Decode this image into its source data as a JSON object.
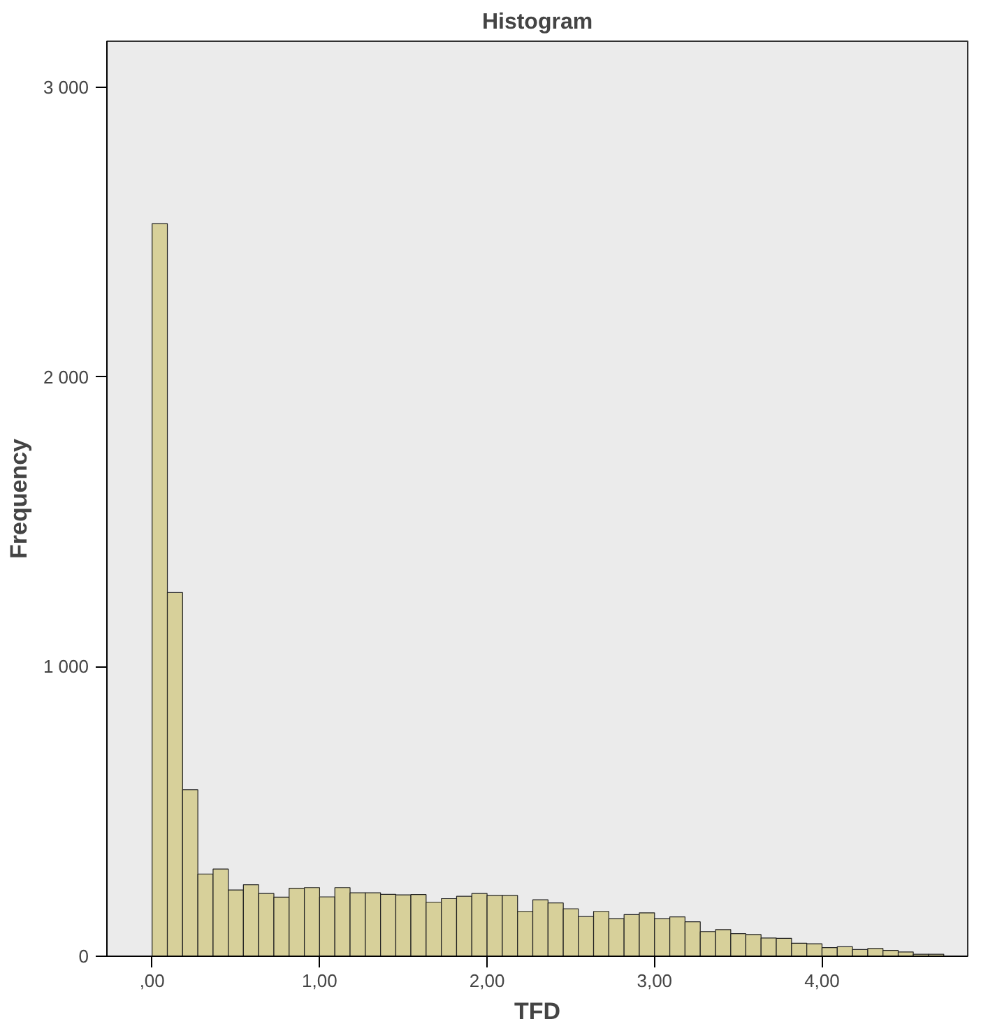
{
  "chart_data": {
    "type": "histogram",
    "title": "Histogram",
    "xlabel": "TFD",
    "ylabel": "Frequency",
    "bins": [
      0,
      0.091,
      0.182,
      0.273,
      0.364,
      0.455,
      0.545,
      0.636,
      0.727,
      0.818,
      0.909,
      1,
      1.091,
      1.182,
      1.273,
      1.364,
      1.455,
      1.545,
      1.636,
      1.727,
      1.818,
      1.909,
      2,
      2.091,
      2.182,
      2.273,
      2.364,
      2.455,
      2.545,
      2.636,
      2.727,
      2.818,
      2.909,
      3,
      3.091,
      3.182,
      3.273,
      3.364,
      3.455,
      3.545,
      3.636,
      3.727,
      3.818,
      3.909,
      4,
      4.091,
      4.182,
      4.273,
      4.364,
      4.455,
      4.545,
      4.636,
      4.727
    ],
    "values": [
      2530,
      1256,
      575,
      284,
      301,
      229,
      247,
      217,
      204,
      235,
      237,
      205,
      237,
      219,
      219,
      214,
      212,
      213,
      187,
      199,
      207,
      217,
      210,
      210,
      155,
      195,
      184,
      164,
      137,
      155,
      130,
      144,
      150,
      130,
      136,
      119,
      85,
      92,
      78,
      75,
      63,
      62,
      45,
      43,
      30,
      33,
      23,
      27,
      20,
      15,
      7,
      7
    ],
    "color": "#d7d09a",
    "xlim": [
      -0.27,
      4.87
    ],
    "ylim": [
      0,
      3160
    ],
    "xticks": [
      {
        "value": 0,
        "label": ",00"
      },
      {
        "value": 1,
        "label": "1,00"
      },
      {
        "value": 2,
        "label": "2,00"
      },
      {
        "value": 3,
        "label": "3,00"
      },
      {
        "value": 4,
        "label": "4,00"
      }
    ],
    "yticks": [
      {
        "value": 0,
        "label": "0"
      },
      {
        "value": 1000,
        "label": "1 000"
      },
      {
        "value": 2000,
        "label": "2 000"
      },
      {
        "value": 3000,
        "label": "3 000"
      }
    ],
    "grid": false
  }
}
